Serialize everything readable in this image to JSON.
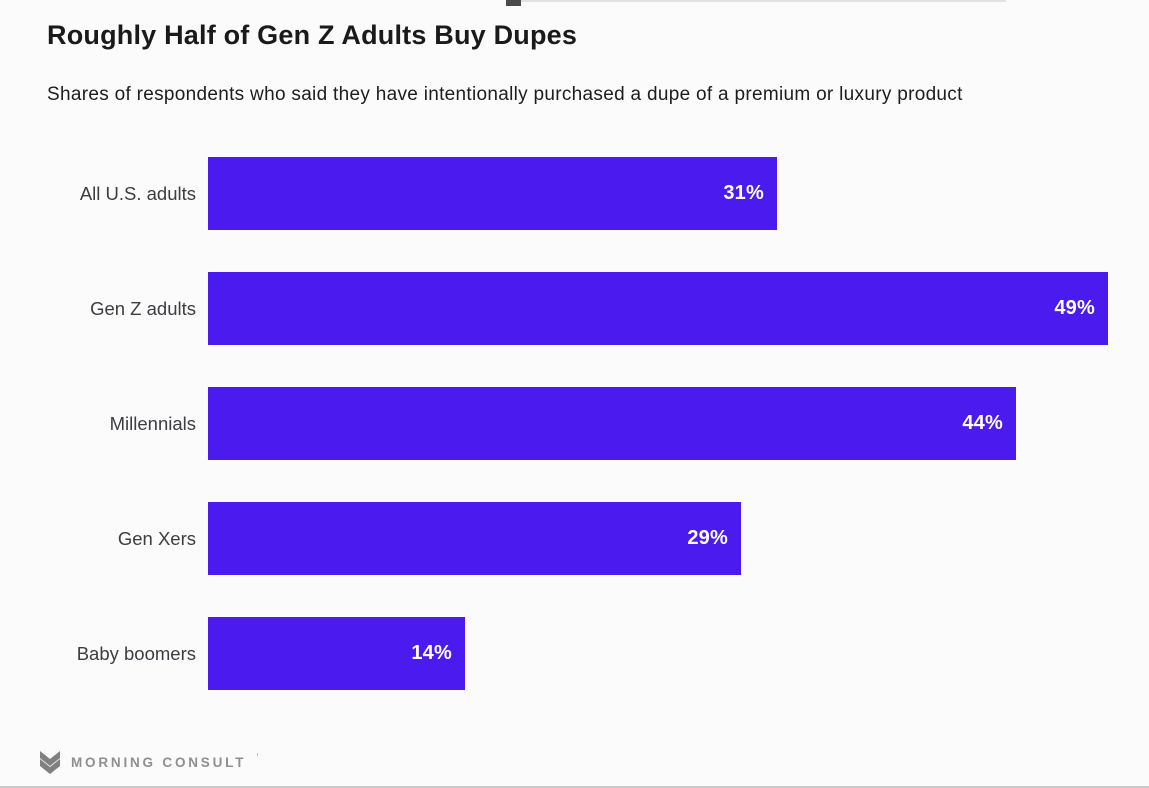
{
  "header": {
    "title": "Roughly Half of Gen Z Adults Buy Dupes",
    "subtitle": "Shares of respondents who said they have intentionally purchased a dupe of a premium or luxury product"
  },
  "chart_data": {
    "type": "bar",
    "orientation": "horizontal",
    "categories": [
      "All U.S. adults",
      "Gen Z adults",
      "Millennials",
      "Gen Xers",
      "Baby boomers"
    ],
    "values": [
      31,
      49,
      44,
      29,
      14
    ],
    "value_suffix": "%",
    "title": "Roughly Half of Gen Z Adults Buy Dupes",
    "xlabel": "",
    "ylabel": "",
    "xlim": [
      0,
      49
    ],
    "grid": false,
    "legend": "none",
    "value_label_position": "inside-end",
    "bar_color": "#4B1AEE"
  },
  "footer": {
    "brand": "MORNING CONSULT",
    "trademark": "’"
  },
  "colors": {
    "bar": "#4B1AEE",
    "background": "#fbfbfb",
    "title_text": "#1a1a1a",
    "subtitle_text": "#1d1d1d",
    "label_text": "#3c3c43",
    "value_text": "#ffffff",
    "footer_text": "#8f8f8f"
  }
}
